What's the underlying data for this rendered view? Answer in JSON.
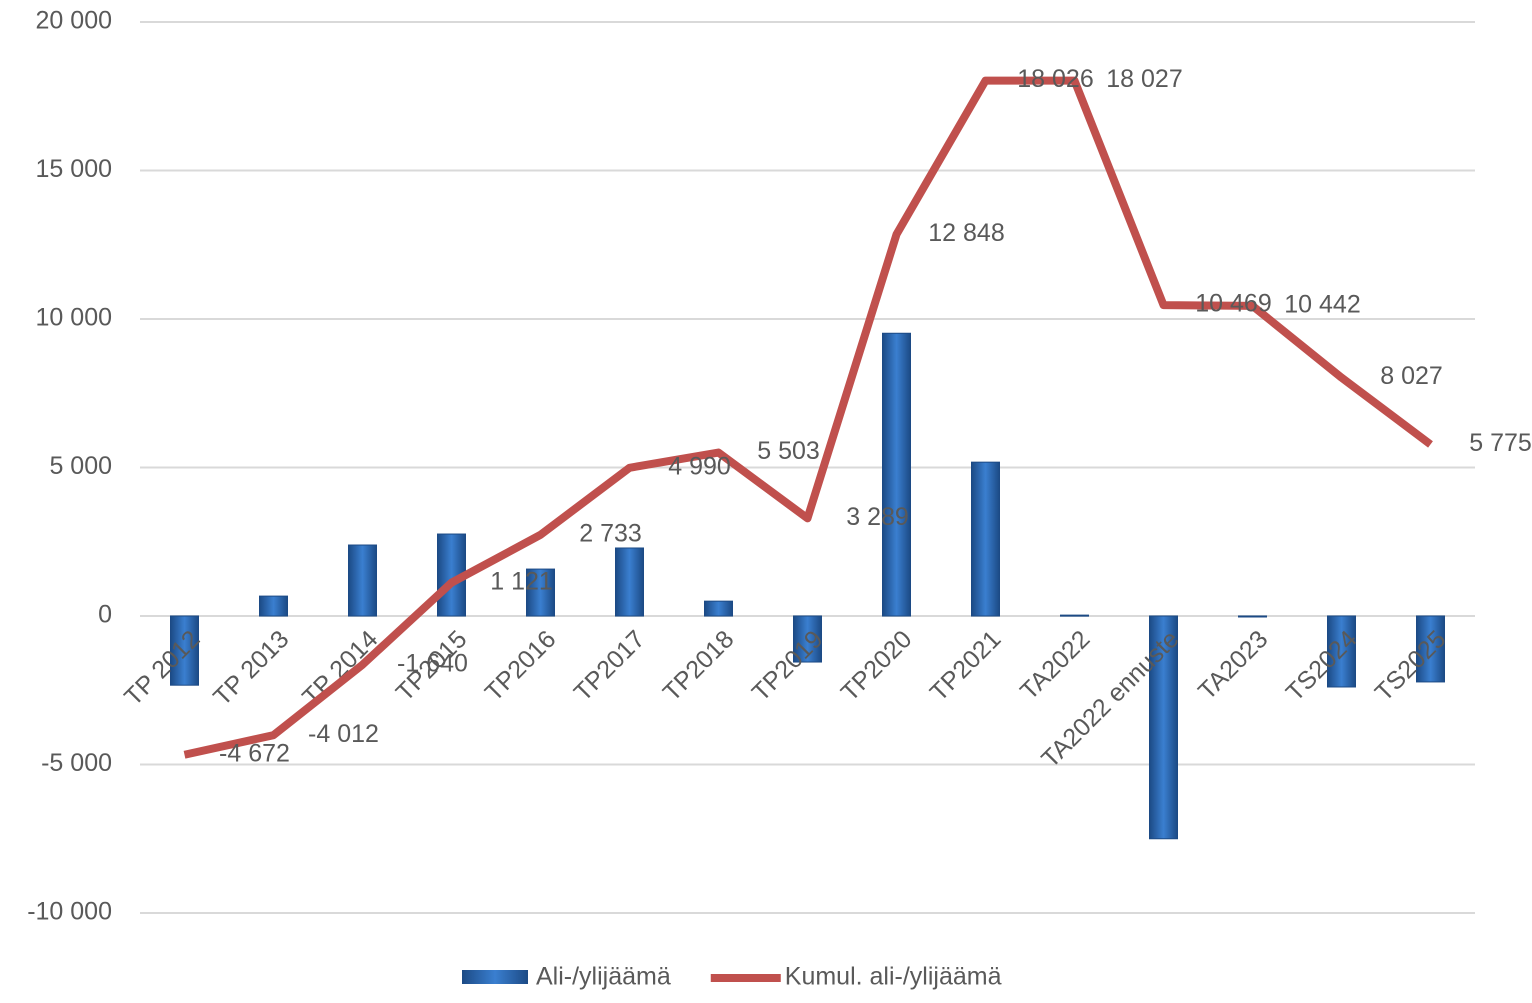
{
  "chart_data": {
    "type": "bar-line",
    "categories": [
      "TP 2012",
      "TP 2013",
      "TP 2014",
      "TP2015",
      "TP2016",
      "TP2017",
      "TP2018",
      "TP2019",
      "TP2020",
      "TP2021",
      "TA2022",
      "TA2022 ennuste",
      "TA2023",
      "TS2024",
      "TS2025"
    ],
    "series": [
      {
        "name": "Ali-/ylijäämä",
        "type": "bar",
        "color": "#2e6db4",
        "values": [
          -2330,
          670,
          2390,
          2760,
          1580,
          2290,
          500,
          -1550,
          9520,
          5180,
          30,
          -7500,
          -30,
          -2390,
          -2220
        ]
      },
      {
        "name": "Kumul. ali-/ylijäämä",
        "type": "line",
        "color": "#c0504d",
        "values": [
          -4672,
          -4012,
          -1640,
          1121,
          2733,
          4990,
          5503,
          3289,
          12848,
          18026,
          18027,
          10469,
          10442,
          8027,
          5775
        ],
        "value_labels": [
          "-4 672",
          "-4 012",
          "-1 640",
          "1 121",
          "2 733",
          "4 990",
          "5 503",
          "3 289",
          "12 848",
          "18 026",
          "18 027",
          "10 469",
          "10 442",
          "8 027",
          "5 775"
        ]
      }
    ],
    "ylim": [
      -10000,
      20000
    ],
    "yticks": [
      {
        "value": -10000,
        "label": "-10 000"
      },
      {
        "value": -5000,
        "label": "-5 000"
      },
      0,
      {
        "value": 5000,
        "label": "5 000"
      },
      {
        "value": 10000,
        "label": "10 000"
      },
      {
        "value": 15000,
        "label": "15 000"
      },
      {
        "value": 20000,
        "label": "20 000"
      }
    ],
    "grid": true,
    "legend": "bottom"
  }
}
